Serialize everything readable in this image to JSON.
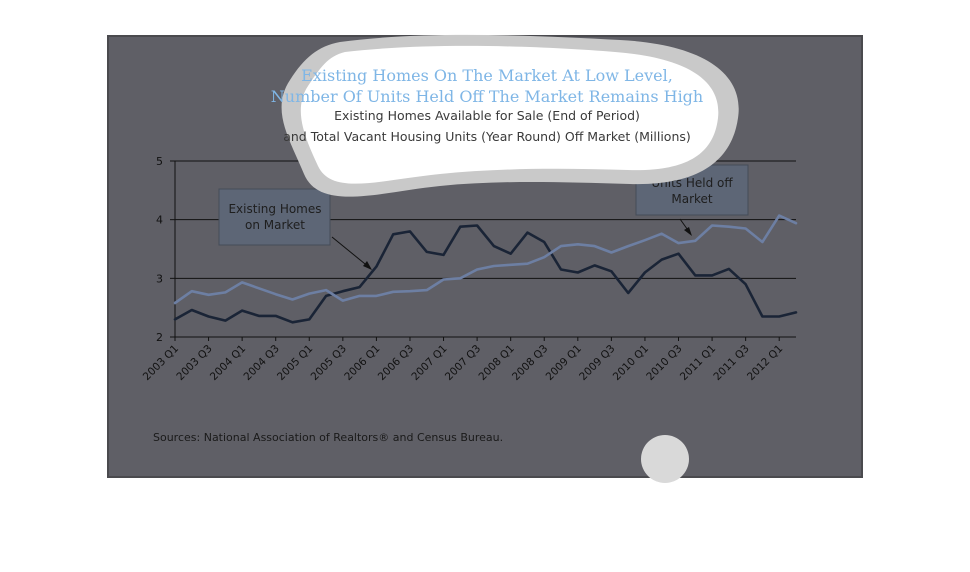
{
  "chart_data": {
    "type": "line",
    "title": [
      "Existing Homes On The Market At Low Level,",
      "Number Of Units Held Off The Market Remains High"
    ],
    "subtitle": [
      "Existing Homes Available for Sale (End of Period)",
      "and Total Vacant Housing Units (Year Round) Off Market (Millions)"
    ],
    "ylim": [
      2,
      5
    ],
    "yticks": [
      "2",
      "3",
      "4",
      "5"
    ],
    "x": [
      "2003 Q1",
      "2003 Q2",
      "2003 Q3",
      "2003 Q4",
      "2004 Q1",
      "2004 Q2",
      "2004 Q3",
      "2004 Q4",
      "2005 Q1",
      "2005 Q2",
      "2005 Q3",
      "2005 Q4",
      "2006 Q1",
      "2006 Q2",
      "2006 Q3",
      "2006 Q4",
      "2007 Q1",
      "2007 Q2",
      "2007 Q3",
      "2007 Q4",
      "2008 Q1",
      "2008 Q2",
      "2008 Q3",
      "2008 Q4",
      "2009 Q1",
      "2009 Q2",
      "2009 Q3",
      "2009 Q4",
      "2010 Q1",
      "2010 Q2",
      "2010 Q3",
      "2010 Q4",
      "2011 Q1",
      "2011 Q2",
      "2011 Q3",
      "2011 Q4",
      "2012 Q1",
      "2012 Q2"
    ],
    "x_tick_labels": [
      "2003 Q1",
      "2003 Q3",
      "2004 Q1",
      "2004 Q3",
      "2005 Q1",
      "2005 Q3",
      "2006 Q1",
      "2006 Q3",
      "2007 Q1",
      "2007 Q3",
      "2008 Q1",
      "2008 Q3",
      "2009 Q1",
      "2009 Q3",
      "2010 Q1",
      "2010 Q3",
      "2011 Q1",
      "2011 Q3",
      "2012 Q1"
    ],
    "series": [
      {
        "callout": "Existing Homes on Market",
        "color": "#1a2436",
        "values": [
          2.3,
          2.46,
          2.35,
          2.28,
          2.45,
          2.36,
          2.36,
          2.25,
          2.3,
          2.7,
          2.78,
          2.85,
          3.2,
          3.75,
          3.8,
          3.45,
          3.4,
          3.88,
          3.9,
          3.55,
          3.42,
          3.78,
          3.62,
          3.15,
          3.1,
          3.22,
          3.12,
          2.75,
          3.1,
          3.32,
          3.42,
          3.05,
          3.05,
          3.16,
          2.9,
          2.35,
          2.35,
          2.42
        ]
      },
      {
        "callout": "Units Held off Market",
        "color": "#6d7fa3",
        "values": [
          2.58,
          2.78,
          2.72,
          2.76,
          2.93,
          2.83,
          2.73,
          2.64,
          2.74,
          2.8,
          2.62,
          2.7,
          2.7,
          2.77,
          2.78,
          2.8,
          2.98,
          3.0,
          3.15,
          3.21,
          3.23,
          3.25,
          3.36,
          3.55,
          3.58,
          3.55,
          3.44,
          3.55,
          3.65,
          3.76,
          3.6,
          3.64,
          3.9,
          3.88,
          3.85,
          3.62,
          4.07,
          3.94
        ]
      }
    ],
    "grid": true,
    "legend": "callouts",
    "source": "Sources: National Association of Realtors® and Census Bureau."
  },
  "colors": {
    "panel": "#5f5f66",
    "panel_border": "#4a4a4e",
    "grid": "#111111",
    "callout_fill": "#5d6676",
    "title": "#7fb6e6"
  }
}
